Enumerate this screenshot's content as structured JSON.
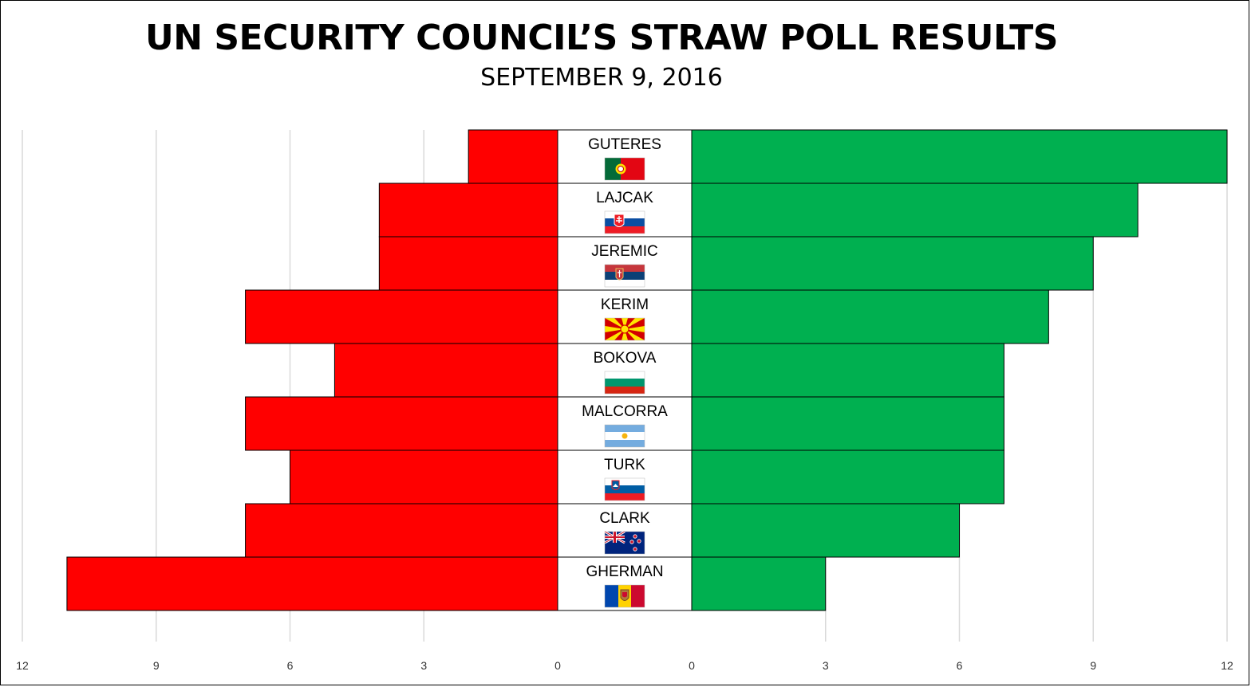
{
  "title": "UN SECURITY COUNCIL’S STRAW POLL RESULTS",
  "subtitle": "SEPTEMBER 9, 2016",
  "colors": {
    "discourage": "#ff0000",
    "encourage": "#00b050",
    "gridline": "#d9d9d9"
  },
  "chart_data": {
    "type": "bar",
    "orientation": "horizontal-diverging",
    "title": "UN SECURITY COUNCIL’S STRAW POLL RESULTS",
    "subtitle": "SEPTEMBER 9, 2016",
    "categories": [
      "GUTERES",
      "LAJCAK",
      "JEREMIC",
      "KERIM",
      "BOKOVA",
      "MALCORRA",
      "TURK",
      "CLARK",
      "GHERMAN"
    ],
    "flags": [
      "portugal",
      "slovakia",
      "serbia",
      "macedonia",
      "bulgaria",
      "argentina",
      "slovenia",
      "new-zealand",
      "moldova"
    ],
    "series": [
      {
        "side": "left",
        "color": "#ff0000",
        "values": [
          2,
          4,
          4,
          7,
          5,
          7,
          6,
          7,
          11
        ]
      },
      {
        "side": "right",
        "color": "#00b050",
        "values": [
          12,
          10,
          9,
          8,
          7,
          7,
          7,
          6,
          3
        ]
      }
    ],
    "xlim": [
      0,
      12
    ],
    "ticks_left": [
      "12",
      "9",
      "6",
      "3",
      "0"
    ],
    "ticks_right": [
      "0",
      "3",
      "6",
      "9",
      "12"
    ],
    "tick_values_left": [
      12,
      9,
      6,
      3,
      0
    ],
    "tick_values_right": [
      0,
      3,
      6,
      9,
      12
    ],
    "grid": true,
    "legend": "none"
  }
}
